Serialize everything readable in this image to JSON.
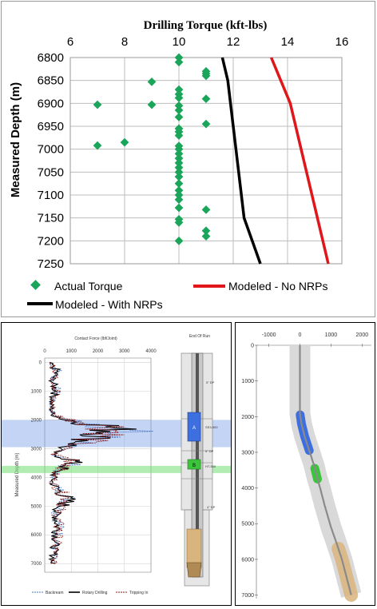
{
  "top_chart": {
    "title": "Drilling Torque (kft-lbs)",
    "ylabel": "Measured Depth (m)",
    "x_ticks": [
      "6",
      "8",
      "10",
      "12",
      "14",
      "16"
    ],
    "y_ticks": [
      "6800",
      "6850",
      "6900",
      "6950",
      "7000",
      "7050",
      "7100",
      "7150",
      "7200",
      "7250"
    ],
    "legend": {
      "actual": "Actual Torque",
      "no_nrp": "Modeled - No NRPs",
      "with_nrp": "Modeled - With NRPs"
    }
  },
  "bottom_left": {
    "title": "Contact Force (lbf/Joint)",
    "ylabel": "Measured Depth (m)",
    "x_ticks": [
      "0",
      "1000",
      "2000",
      "3000",
      "4000"
    ],
    "y_ticks": [
      "0",
      "1000",
      "2000",
      "3000",
      "4000",
      "5000",
      "6000",
      "7000"
    ],
    "legend": [
      "Backream",
      "Rotary Drilling",
      "Tripping In"
    ],
    "bha_title": "End Of Run",
    "bha_labels": {
      "dp_top": "5\" DP",
      "sub_a": "SS3-500",
      "a": "A",
      "dp_mid": "5\" DP",
      "sub_b": "HT-500",
      "b": "B",
      "dp_low": "4\" DP"
    }
  },
  "bottom_right": {
    "x_ticks": [
      "-1000",
      "0",
      "1000",
      "2000"
    ],
    "y_ticks": [
      "0",
      "1000",
      "2000",
      "3000",
      "4000",
      "5000",
      "6000",
      "7000"
    ]
  },
  "colors": {
    "actual": "#1aa55a",
    "no_nrp": "#e0161b",
    "with_nrp": "#000000",
    "band_blue": "#7aa0e8",
    "band_green": "#7de07d",
    "sub_a_fill": "#3d6fe0",
    "sub_b_fill": "#3cc43c",
    "bit_fill": "#d9b47c"
  },
  "chart_data": [
    {
      "type": "scatter",
      "title": "Drilling Torque (kft-lbs)",
      "xlabel": "",
      "ylabel": "Measured Depth (m)",
      "xlim": [
        6,
        16
      ],
      "ylim": [
        7250,
        6800
      ],
      "grid": true,
      "legend_position": "bottom",
      "series": [
        {
          "name": "Actual Torque",
          "kind": "scatter",
          "points": [
            [
              10,
              6800
            ],
            [
              10,
              6810
            ],
            [
              11,
              6830
            ],
            [
              11,
              6835
            ],
            [
              11,
              6840
            ],
            [
              9,
              6853
            ],
            [
              10,
              6870
            ],
            [
              10,
              6880
            ],
            [
              10,
              6888
            ],
            [
              11,
              6890
            ],
            [
              7,
              6903
            ],
            [
              9,
              6903
            ],
            [
              10,
              6905
            ],
            [
              10,
              6915
            ],
            [
              10,
              6930
            ],
            [
              11,
              6945
            ],
            [
              10,
              6955
            ],
            [
              10,
              6962
            ],
            [
              10,
              6970
            ],
            [
              8,
              6985
            ],
            [
              7,
              6992
            ],
            [
              10,
              6993
            ],
            [
              10,
              7000
            ],
            [
              10,
              7010
            ],
            [
              10,
              7020
            ],
            [
              10,
              7030
            ],
            [
              10,
              7040
            ],
            [
              10,
              7050
            ],
            [
              10,
              7060
            ],
            [
              10,
              7075
            ],
            [
              10,
              7090
            ],
            [
              10,
              7100
            ],
            [
              10,
              7110
            ],
            [
              10,
              7128
            ],
            [
              11,
              7132
            ],
            [
              10,
              7153
            ],
            [
              10,
              7160
            ],
            [
              11,
              7178
            ],
            [
              11,
              7190
            ],
            [
              10,
              7200
            ]
          ]
        },
        {
          "name": "Modeled - No NRPs",
          "kind": "line",
          "points": [
            [
              13.4,
              6800
            ],
            [
              14.1,
              6900
            ],
            [
              14.5,
              7000
            ],
            [
              14.9,
              7100
            ],
            [
              15.3,
              7200
            ],
            [
              15.5,
              7250
            ]
          ]
        },
        {
          "name": "Modeled - With NRPs",
          "kind": "line",
          "points": [
            [
              11.6,
              6800
            ],
            [
              11.8,
              6850
            ],
            [
              12.0,
              6950
            ],
            [
              12.1,
              7000
            ],
            [
              12.2,
              7050
            ],
            [
              12.3,
              7100
            ],
            [
              12.4,
              7150
            ],
            [
              12.7,
              7200
            ],
            [
              13.0,
              7250
            ]
          ]
        }
      ]
    },
    {
      "type": "line",
      "title": "Contact Force (lbf/Joint)",
      "xlabel": "",
      "ylabel": "Measured Depth (m)",
      "xlim": [
        0,
        4000
      ],
      "ylim": [
        7300,
        -150
      ],
      "grid": true,
      "legend_position": "bottom",
      "highlight_bands": [
        [
          2000,
          2950
        ],
        [
          3600,
          3850
        ]
      ],
      "series": [
        {
          "name": "Backream",
          "profile": [
            [
              0,
              200
            ],
            [
              300,
              500
            ],
            [
              600,
              300
            ],
            [
              1000,
              450
            ],
            [
              1400,
              250
            ],
            [
              1800,
              300
            ],
            [
              2000,
              900
            ],
            [
              2200,
              2500
            ],
            [
              2400,
              2900
            ],
            [
              2600,
              2200
            ],
            [
              2800,
              1500
            ],
            [
              3000,
              600
            ],
            [
              3200,
              300
            ],
            [
              3400,
              1200
            ],
            [
              3600,
              900
            ],
            [
              3800,
              400
            ],
            [
              4200,
              300
            ],
            [
              4800,
              950
            ],
            [
              5200,
              450
            ],
            [
              5800,
              550
            ],
            [
              6400,
              400
            ],
            [
              7000,
              300
            ]
          ]
        },
        {
          "name": "Rotary Drilling",
          "profile": [
            [
              0,
              180
            ],
            [
              300,
              450
            ],
            [
              600,
              280
            ],
            [
              1000,
              420
            ],
            [
              1400,
              240
            ],
            [
              1800,
              280
            ],
            [
              2000,
              800
            ],
            [
              2200,
              2300
            ],
            [
              2400,
              2700
            ],
            [
              2600,
              2000
            ],
            [
              2800,
              1300
            ],
            [
              3000,
              550
            ],
            [
              3200,
              280
            ],
            [
              3400,
              1100
            ],
            [
              3600,
              850
            ],
            [
              3800,
              380
            ],
            [
              4200,
              280
            ],
            [
              4800,
              880
            ],
            [
              5200,
              420
            ],
            [
              5800,
              500
            ],
            [
              6400,
              380
            ],
            [
              7000,
              280
            ]
          ]
        },
        {
          "name": "Tripping In",
          "profile": [
            [
              0,
              220
            ],
            [
              300,
              480
            ],
            [
              600,
              320
            ],
            [
              1000,
              470
            ],
            [
              1400,
              260
            ],
            [
              1800,
              320
            ],
            [
              2000,
              950
            ],
            [
              2200,
              2400
            ],
            [
              2400,
              2800
            ],
            [
              2600,
              2100
            ],
            [
              2800,
              1400
            ],
            [
              3000,
              620
            ],
            [
              3200,
              320
            ],
            [
              3400,
              1150
            ],
            [
              3600,
              920
            ],
            [
              3800,
              420
            ],
            [
              4200,
              320
            ],
            [
              4800,
              920
            ],
            [
              5200,
              460
            ],
            [
              5800,
              540
            ],
            [
              6400,
              420
            ],
            [
              7000,
              320
            ]
          ]
        }
      ]
    },
    {
      "type": "line",
      "title": "",
      "xlabel": "",
      "ylabel": "",
      "xlim": [
        -1400,
        2300
      ],
      "ylim": [
        7100,
        0
      ],
      "grid": false,
      "series": [
        {
          "name": "",
          "points": [
            [
              0,
              0
            ],
            [
              0,
              1900
            ],
            [
              50,
              2200
            ],
            [
              150,
              2550
            ],
            [
              300,
              2950
            ],
            [
              450,
              3350
            ],
            [
              550,
              3700
            ],
            [
              650,
              4000
            ],
            [
              800,
              4500
            ],
            [
              1000,
              5100
            ],
            [
              1200,
              5600
            ],
            [
              1350,
              6000
            ],
            [
              1500,
              6500
            ],
            [
              1650,
              7000
            ]
          ]
        }
      ],
      "segments": [
        {
          "label": "sub_a",
          "from_depth": 1950,
          "to_depth": 2950,
          "color": "#3d6fe0"
        },
        {
          "label": "sub_b",
          "from_depth": 3450,
          "to_depth": 3750,
          "color": "#3cc43c"
        },
        {
          "label": "bit",
          "from_depth": 5700,
          "to_depth": 7000,
          "color": "#d9b47c"
        }
      ]
    }
  ]
}
